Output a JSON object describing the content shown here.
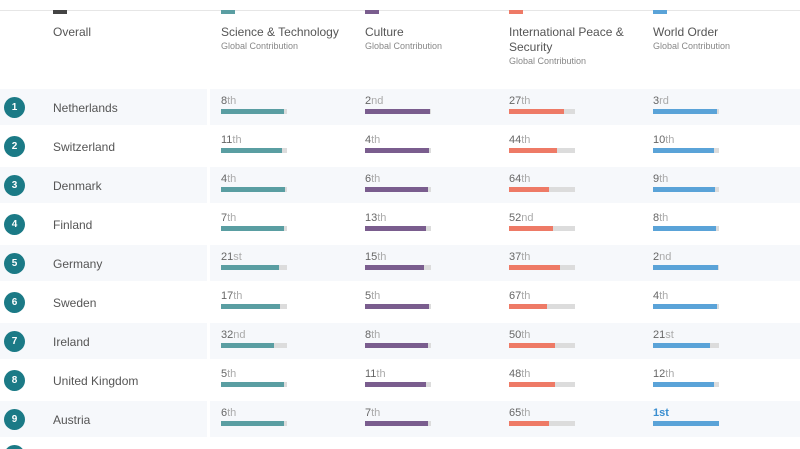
{
  "columns": [
    {
      "key": "overall",
      "title": "Overall",
      "subtitle": "",
      "color": "#444444"
    },
    {
      "key": "science",
      "title": "Science & Technology",
      "subtitle": "Global Contribution",
      "color": "#5a9ea2"
    },
    {
      "key": "culture",
      "title": "Culture",
      "subtitle": "Global Contribution",
      "color": "#7a5d8e"
    },
    {
      "key": "peace",
      "title_line1": "International Peace &",
      "title_line2": "Security",
      "subtitle": "Global Contribution",
      "color": "#ee7a66"
    },
    {
      "key": "world",
      "title": "World Order",
      "subtitle": "Global Contribution",
      "color": "#5aa3d8"
    }
  ],
  "rows": [
    {
      "rank": "1",
      "country": "Netherlands",
      "science": {
        "num": "8",
        "sfx": "th",
        "level": 0.96
      },
      "culture": {
        "num": "2",
        "sfx": "nd",
        "level": 0.98
      },
      "peace": {
        "num": "27",
        "sfx": "th",
        "level": 0.83
      },
      "world": {
        "num": "3",
        "sfx": "rd",
        "level": 0.97
      }
    },
    {
      "rank": "2",
      "country": "Switzerland",
      "science": {
        "num": "11",
        "sfx": "th",
        "level": 0.92
      },
      "culture": {
        "num": "4",
        "sfx": "th",
        "level": 0.97
      },
      "peace": {
        "num": "44",
        "sfx": "th",
        "level": 0.73
      },
      "world": {
        "num": "10",
        "sfx": "th",
        "level": 0.93
      }
    },
    {
      "rank": "3",
      "country": "Denmark",
      "science": {
        "num": "4",
        "sfx": "th",
        "level": 0.97
      },
      "culture": {
        "num": "6",
        "sfx": "th",
        "level": 0.96
      },
      "peace": {
        "num": "64",
        "sfx": "th",
        "level": 0.6
      },
      "world": {
        "num": "9",
        "sfx": "th",
        "level": 0.94
      }
    },
    {
      "rank": "4",
      "country": "Finland",
      "science": {
        "num": "7",
        "sfx": "th",
        "level": 0.96
      },
      "culture": {
        "num": "13",
        "sfx": "th",
        "level": 0.92
      },
      "peace": {
        "num": "52",
        "sfx": "nd",
        "level": 0.67
      },
      "world": {
        "num": "8",
        "sfx": "th",
        "level": 0.96
      }
    },
    {
      "rank": "5",
      "country": "Germany",
      "science": {
        "num": "21",
        "sfx": "st",
        "level": 0.88
      },
      "culture": {
        "num": "15",
        "sfx": "th",
        "level": 0.9
      },
      "peace": {
        "num": "37",
        "sfx": "th",
        "level": 0.77
      },
      "world": {
        "num": "2",
        "sfx": "nd",
        "level": 0.98
      }
    },
    {
      "rank": "6",
      "country": "Sweden",
      "science": {
        "num": "17",
        "sfx": "th",
        "level": 0.9
      },
      "culture": {
        "num": "5",
        "sfx": "th",
        "level": 0.97
      },
      "peace": {
        "num": "67",
        "sfx": "th",
        "level": 0.58
      },
      "world": {
        "num": "4",
        "sfx": "th",
        "level": 0.97
      }
    },
    {
      "rank": "7",
      "country": "Ireland",
      "science": {
        "num": "32",
        "sfx": "nd",
        "level": 0.81
      },
      "culture": {
        "num": "8",
        "sfx": "th",
        "level": 0.95
      },
      "peace": {
        "num": "50",
        "sfx": "th",
        "level": 0.69
      },
      "world": {
        "num": "21",
        "sfx": "st",
        "level": 0.86
      }
    },
    {
      "rank": "8",
      "country": "United Kingdom",
      "science": {
        "num": "5",
        "sfx": "th",
        "level": 0.96
      },
      "culture": {
        "num": "11",
        "sfx": "th",
        "level": 0.93
      },
      "peace": {
        "num": "48",
        "sfx": "th",
        "level": 0.7
      },
      "world": {
        "num": "12",
        "sfx": "th",
        "level": 0.92
      }
    },
    {
      "rank": "9",
      "country": "Austria",
      "science": {
        "num": "6",
        "sfx": "th",
        "level": 0.96
      },
      "culture": {
        "num": "7",
        "sfx": "th",
        "level": 0.95
      },
      "peace": {
        "num": "65",
        "sfx": "th",
        "level": 0.6
      },
      "world": {
        "num": "1",
        "sfx": "st",
        "level": 1.0,
        "best": true
      }
    }
  ]
}
